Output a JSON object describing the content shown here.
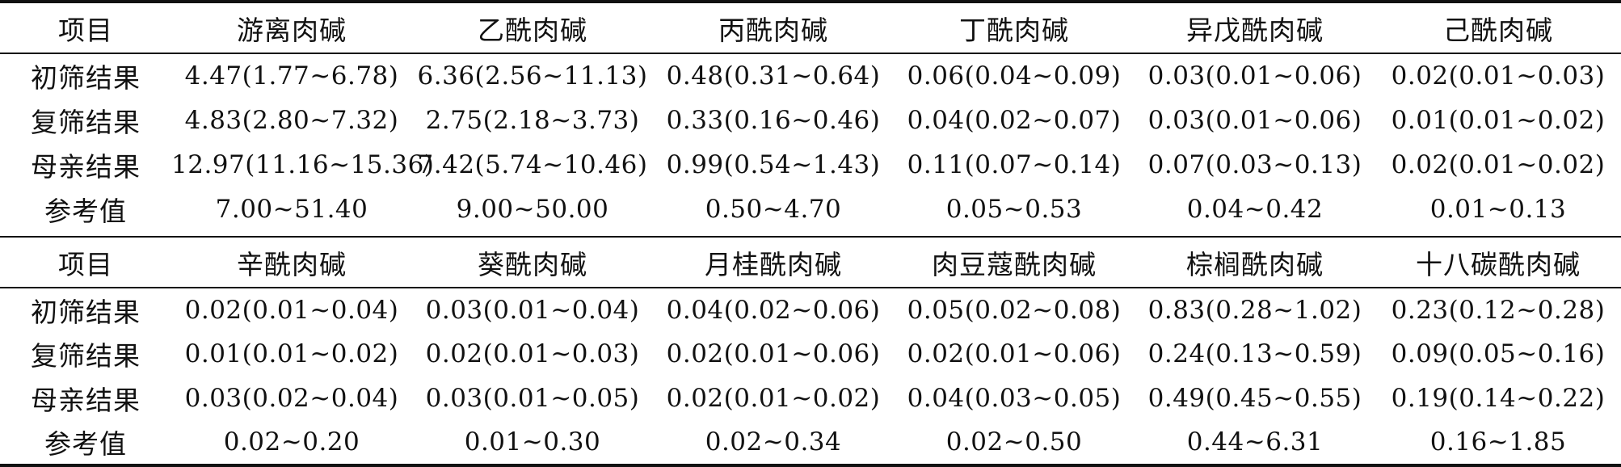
{
  "table": {
    "sections": [
      {
        "header": [
          "项目",
          "游离肉碱",
          "乙酰肉碱",
          "丙酰肉碱",
          "丁酰肉碱",
          "异戊酰肉碱",
          "己酰肉碱"
        ],
        "rows": [
          [
            "初筛结果",
            "4.47(1.77~6.78)",
            "6.36(2.56~11.13)",
            "0.48(0.31~0.64)",
            "0.06(0.04~0.09)",
            "0.03(0.01~0.06)",
            "0.02(0.01~0.03)"
          ],
          [
            "复筛结果",
            "4.83(2.80~7.32)",
            "2.75(2.18~3.73)",
            "0.33(0.16~0.46)",
            "0.04(0.02~0.07)",
            "0.03(0.01~0.06)",
            "0.01(0.01~0.02)"
          ],
          [
            "母亲结果",
            "12.97(11.16~15.36)",
            "7.42(5.74~10.46)",
            "0.99(0.54~1.43)",
            "0.11(0.07~0.14)",
            "0.07(0.03~0.13)",
            "0.02(0.01~0.02)"
          ],
          [
            "参考值",
            "7.00~51.40",
            "9.00~50.00",
            "0.50~4.70",
            "0.05~0.53",
            "0.04~0.42",
            "0.01~0.13"
          ]
        ]
      },
      {
        "header": [
          "项目",
          "辛酰肉碱",
          "葵酰肉碱",
          "月桂酰肉碱",
          "肉豆蔻酰肉碱",
          "棕榈酰肉碱",
          "十八碳酰肉碱"
        ],
        "rows": [
          [
            "初筛结果",
            "0.02(0.01~0.04)",
            "0.03(0.01~0.04)",
            "0.04(0.02~0.06)",
            "0.05(0.02~0.08)",
            "0.83(0.28~1.02)",
            "0.23(0.12~0.28)"
          ],
          [
            "复筛结果",
            "0.01(0.01~0.02)",
            "0.02(0.01~0.03)",
            "0.02(0.01~0.06)",
            "0.02(0.01~0.06)",
            "0.24(0.13~0.59)",
            "0.09(0.05~0.16)"
          ],
          [
            "母亲结果",
            "0.03(0.02~0.04)",
            "0.03(0.01~0.05)",
            "0.02(0.01~0.02)",
            "0.04(0.03~0.05)",
            "0.49(0.45~0.55)",
            "0.19(0.14~0.22)"
          ],
          [
            "参考值",
            "0.02~0.20",
            "0.01~0.30",
            "0.02~0.34",
            "0.02~0.50",
            "0.44~6.31",
            "0.16~1.85"
          ]
        ]
      }
    ]
  }
}
